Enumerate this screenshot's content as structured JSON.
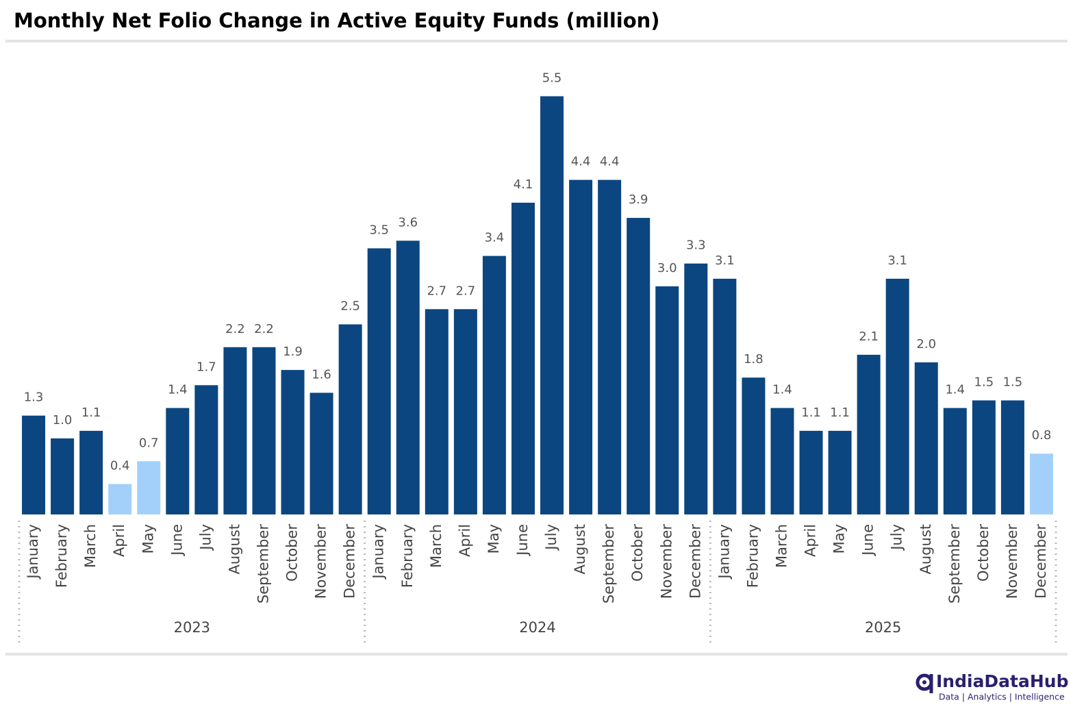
{
  "chart_data": {
    "type": "bar",
    "title": "Monthly Net Folio Change in Active Equity Funds (million)",
    "groups": [
      {
        "name": "2023",
        "categories": [
          "January",
          "February",
          "March",
          "April",
          "May",
          "June",
          "July",
          "August",
          "September",
          "October",
          "November",
          "December"
        ]
      },
      {
        "name": "2024",
        "categories": [
          "January",
          "February",
          "March",
          "April",
          "May",
          "June",
          "July",
          "August",
          "September",
          "October",
          "November",
          "December"
        ]
      },
      {
        "name": "2025",
        "categories": [
          "January",
          "February",
          "March",
          "April",
          "May",
          "June",
          "July",
          "August",
          "September",
          "October",
          "November",
          "December"
        ]
      }
    ],
    "values": [
      1.3,
      1.0,
      1.1,
      0.4,
      0.7,
      1.4,
      1.7,
      2.2,
      2.2,
      1.9,
      1.6,
      2.5,
      3.5,
      3.6,
      2.7,
      2.7,
      3.4,
      4.1,
      5.5,
      4.4,
      4.4,
      3.9,
      3.0,
      3.3,
      3.1,
      1.8,
      1.4,
      1.1,
      1.1,
      2.1,
      3.1,
      2.0,
      1.4,
      1.5,
      1.5,
      0.8
    ],
    "value_labels": [
      "1.3",
      "1.0",
      "1.1",
      "0.4",
      "0.7",
      "1.4",
      "1.7",
      "2.2",
      "2.2",
      "1.9",
      "1.6",
      "2.5",
      "3.5",
      "3.6",
      "2.7",
      "2.7",
      "3.4",
      "4.1",
      "5.5",
      "4.4",
      "4.4",
      "3.9",
      "3.0",
      "3.3",
      "3.1",
      "1.8",
      "1.4",
      "1.1",
      "1.1",
      "2.1",
      "3.1",
      "2.0",
      "1.4",
      "1.5",
      "1.5",
      "0.8"
    ],
    "colors": [
      "#0b4680",
      "#0b4680",
      "#0b4680",
      "#a3d0fb",
      "#a3d0fb",
      "#0b4680",
      "#0b4680",
      "#0b4680",
      "#0b4680",
      "#0b4680",
      "#0b4680",
      "#0b4680",
      "#0b4680",
      "#0b4680",
      "#0b4680",
      "#0b4680",
      "#0b4680",
      "#0b4680",
      "#0b4680",
      "#0b4680",
      "#0b4680",
      "#0b4680",
      "#0b4680",
      "#0b4680",
      "#0b4680",
      "#0b4680",
      "#0b4680",
      "#0b4680",
      "#0b4680",
      "#0b4680",
      "#0b4680",
      "#0b4680",
      "#0b4680",
      "#0b4680",
      "#0b4680",
      "#a3d0fb"
    ],
    "ylim": [
      0,
      6
    ]
  },
  "logo": {
    "name": "IndiaDataHub",
    "tagline": "Data | Analytics | Intelligence"
  }
}
